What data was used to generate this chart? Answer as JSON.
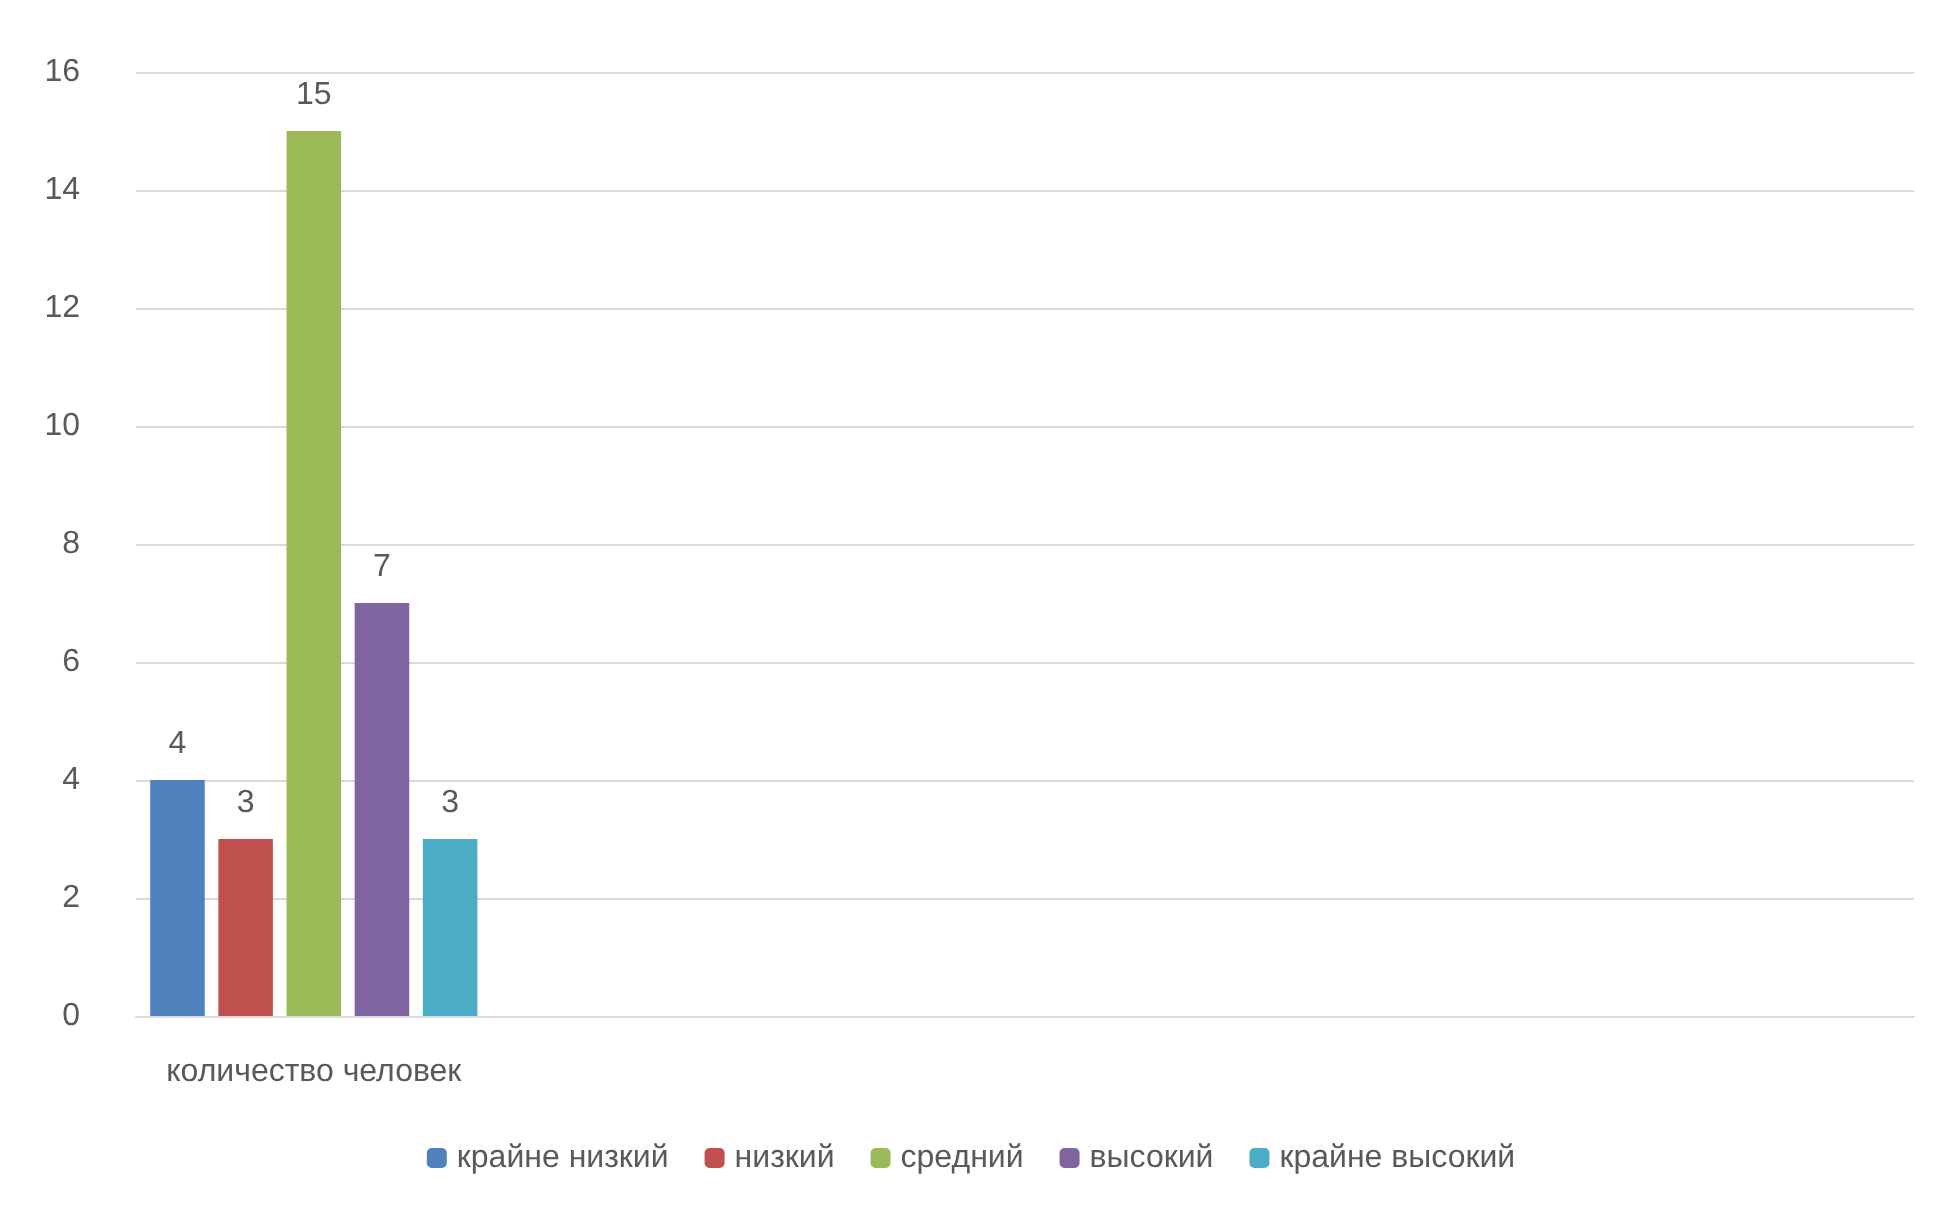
{
  "chart_data": {
    "type": "bar",
    "categories": [
      "количество человек",
      null,
      null,
      null,
      null
    ],
    "series": [
      {
        "name": "крайне низкий",
        "color": "#4f81bd",
        "values": [
          4,
          null,
          null,
          null,
          null
        ]
      },
      {
        "name": "низкий",
        "color": "#c0504d",
        "values": [
          3,
          null,
          null,
          null,
          null
        ]
      },
      {
        "name": "средний",
        "color": "#9bbb59",
        "values": [
          15,
          null,
          null,
          null,
          null
        ]
      },
      {
        "name": "высокий",
        "color": "#8064a2",
        "values": [
          7,
          null,
          null,
          null,
          null
        ]
      },
      {
        "name": "крайне высокий",
        "color": "#4bacc6",
        "values": [
          3,
          null,
          null,
          null,
          null
        ]
      }
    ],
    "ylim": [
      0,
      16
    ],
    "yticks": [
      0,
      2,
      4,
      6,
      8,
      10,
      12,
      14,
      16
    ],
    "grid": "y",
    "legend": "bottom",
    "data_labels": true
  }
}
